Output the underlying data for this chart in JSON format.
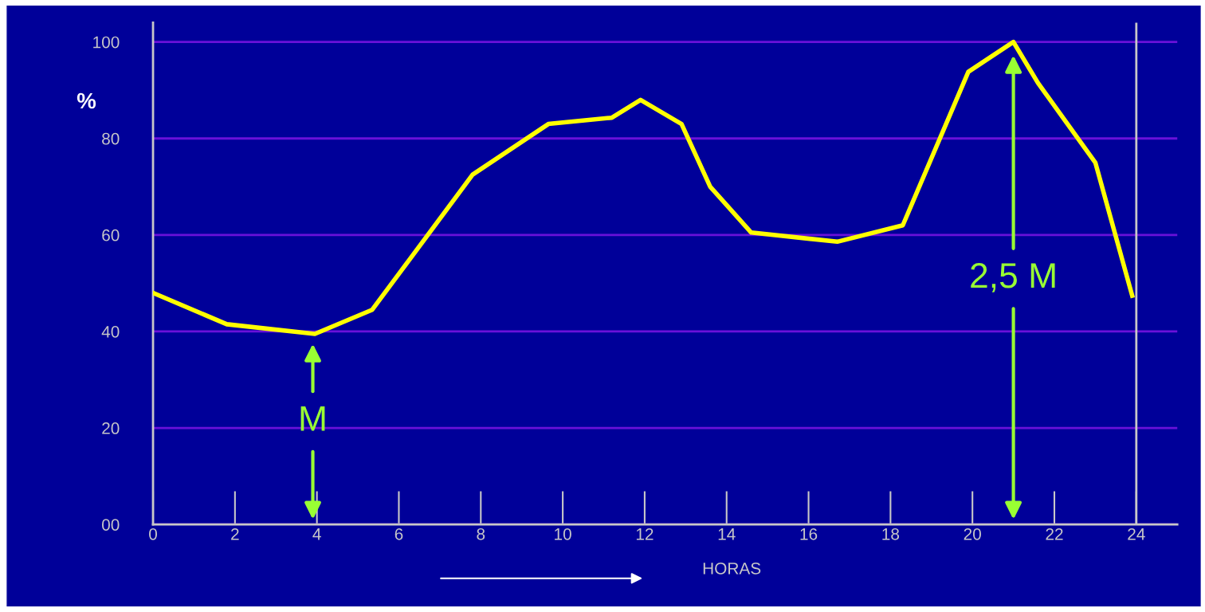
{
  "chart_data": {
    "type": "line",
    "xlabel": "HORAS",
    "ylabel": "%",
    "x": [
      0,
      1.8,
      3.95,
      5.35,
      7.8,
      9.65,
      11.2,
      11.9,
      12.9,
      13.6,
      14.6,
      16.7,
      18.3,
      19.9,
      21,
      21.6,
      23,
      23.9
    ],
    "series": [
      {
        "color": "#ffff00",
        "values": [
          48,
          41.5,
          39.5,
          44.5,
          72.5,
          83,
          84.3,
          88,
          83,
          70,
          60.5,
          58.6,
          62,
          93.8,
          100,
          91.5,
          75,
          47.4
        ]
      }
    ],
    "xlim": [
      0,
      25
    ],
    "ylim": [
      0,
      104
    ],
    "xticks": [
      0,
      2,
      4,
      6,
      8,
      10,
      12,
      14,
      16,
      18,
      20,
      22,
      24
    ],
    "yticks": [
      {
        "value": 0,
        "label": "00"
      },
      20,
      40,
      60,
      80,
      100
    ],
    "grid": "y",
    "marker": "none",
    "line_style": "solid",
    "ref_lines": [
      {
        "axis": "x",
        "value": 24,
        "color": "#c8c8c8"
      }
    ],
    "annotations": [
      "M",
      "2,5 M"
    ]
  }
}
